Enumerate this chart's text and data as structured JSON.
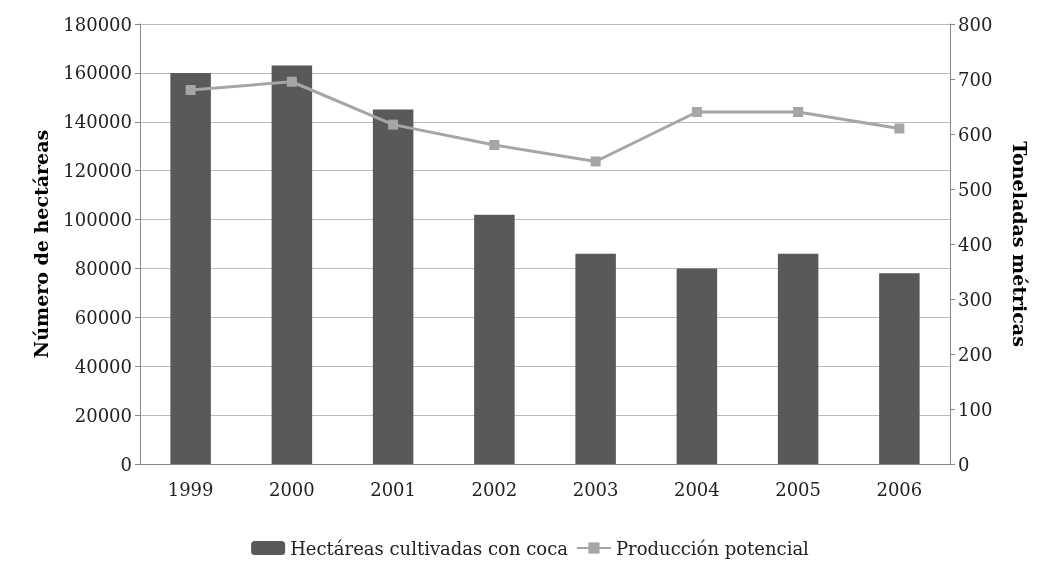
{
  "chart_data": {
    "type": "bar",
    "categories": [
      "1999",
      "2000",
      "2001",
      "2002",
      "2003",
      "2004",
      "2005",
      "2006"
    ],
    "ylabel": "Número de hectáreas",
    "y2label": "Toneladas métricas",
    "series": [
      {
        "name": "Hectáreas cultivadas con coca",
        "color": "#595959",
        "values": [
          160000,
          163000,
          145000,
          102000,
          86000,
          80000,
          86000,
          78000
        ]
      },
      {
        "name": "Producción potencial",
        "type": "line",
        "axis": "y2",
        "color": "#a6a6a6",
        "marker": "square",
        "values": [
          680,
          695,
          617,
          580,
          550,
          640,
          640,
          610
        ]
      }
    ],
    "ylim": [
      0,
      180000
    ],
    "yticks": [
      0,
      20000,
      40000,
      60000,
      80000,
      100000,
      120000,
      140000,
      160000,
      180000
    ],
    "y2lim": [
      0,
      800
    ],
    "y2ticks": [
      0,
      100,
      200,
      300,
      400,
      500,
      600,
      700,
      800
    ],
    "grid": "y",
    "legend": "bottom"
  }
}
